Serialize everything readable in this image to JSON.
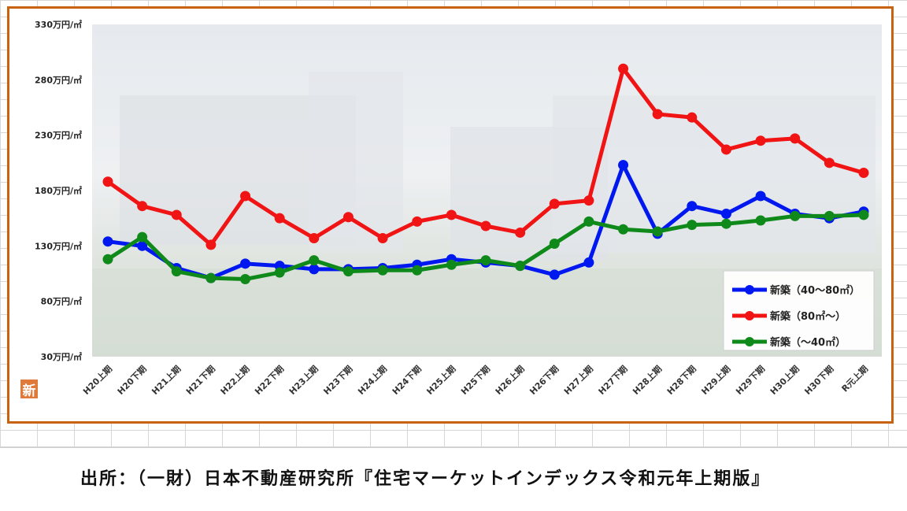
{
  "logo_text": "新",
  "source_note": "出所：（一財）日本不動産研究所『住宅マーケットインデックス令和元年上期版』",
  "colors": {
    "frame": "#c8620f",
    "blue": "#0018f0",
    "red": "#f01414",
    "green": "#0f8a1a"
  },
  "chart_data": {
    "type": "line",
    "title": "",
    "xlabel": "",
    "ylabel": "",
    "ylim": [
      30,
      330
    ],
    "yticks": [
      {
        "value": 330,
        "label": "330万円/㎡"
      },
      {
        "value": 280,
        "label": "280万円/㎡"
      },
      {
        "value": 230,
        "label": "230万円/㎡"
      },
      {
        "value": 180,
        "label": "180万円/㎡"
      },
      {
        "value": 130,
        "label": "130万円/㎡"
      },
      {
        "value": 80,
        "label": "80万円/㎡"
      },
      {
        "value": 30,
        "label": "30万円/㎡"
      }
    ],
    "categories": [
      "H20上期",
      "H20下期",
      "H21上期",
      "H21下期",
      "H22上期",
      "H22下期",
      "H23上期",
      "H23下期",
      "H24上期",
      "H24下期",
      "H25上期",
      "H25下期",
      "H26上期",
      "H26下期",
      "H27上期",
      "H27下期",
      "H28上期",
      "H28下期",
      "H29上期",
      "H29下期",
      "H30上期",
      "H30下期",
      "R元上期"
    ],
    "legend_position": "bottom-right",
    "series": [
      {
        "name": "新築（40～80㎡）",
        "color": "#0018f0",
        "values": [
          134,
          130,
          110,
          101,
          114,
          112,
          109,
          109,
          110,
          113,
          118,
          115,
          112,
          104,
          115,
          203,
          141,
          166,
          159,
          175,
          159,
          155,
          161
        ]
      },
      {
        "name": "新築（80㎡～）",
        "color": "#f01414",
        "values": [
          188,
          166,
          158,
          131,
          175,
          155,
          137,
          156,
          137,
          152,
          158,
          148,
          142,
          168,
          171,
          290,
          249,
          246,
          217,
          225,
          227,
          205,
          196
        ]
      },
      {
        "name": "新築（～40㎡）",
        "color": "#0f8a1a",
        "values": [
          118,
          138,
          107,
          101,
          100,
          106,
          117,
          107,
          108,
          108,
          113,
          117,
          112,
          132,
          152,
          145,
          143,
          149,
          150,
          153,
          157,
          157,
          158
        ]
      }
    ]
  }
}
